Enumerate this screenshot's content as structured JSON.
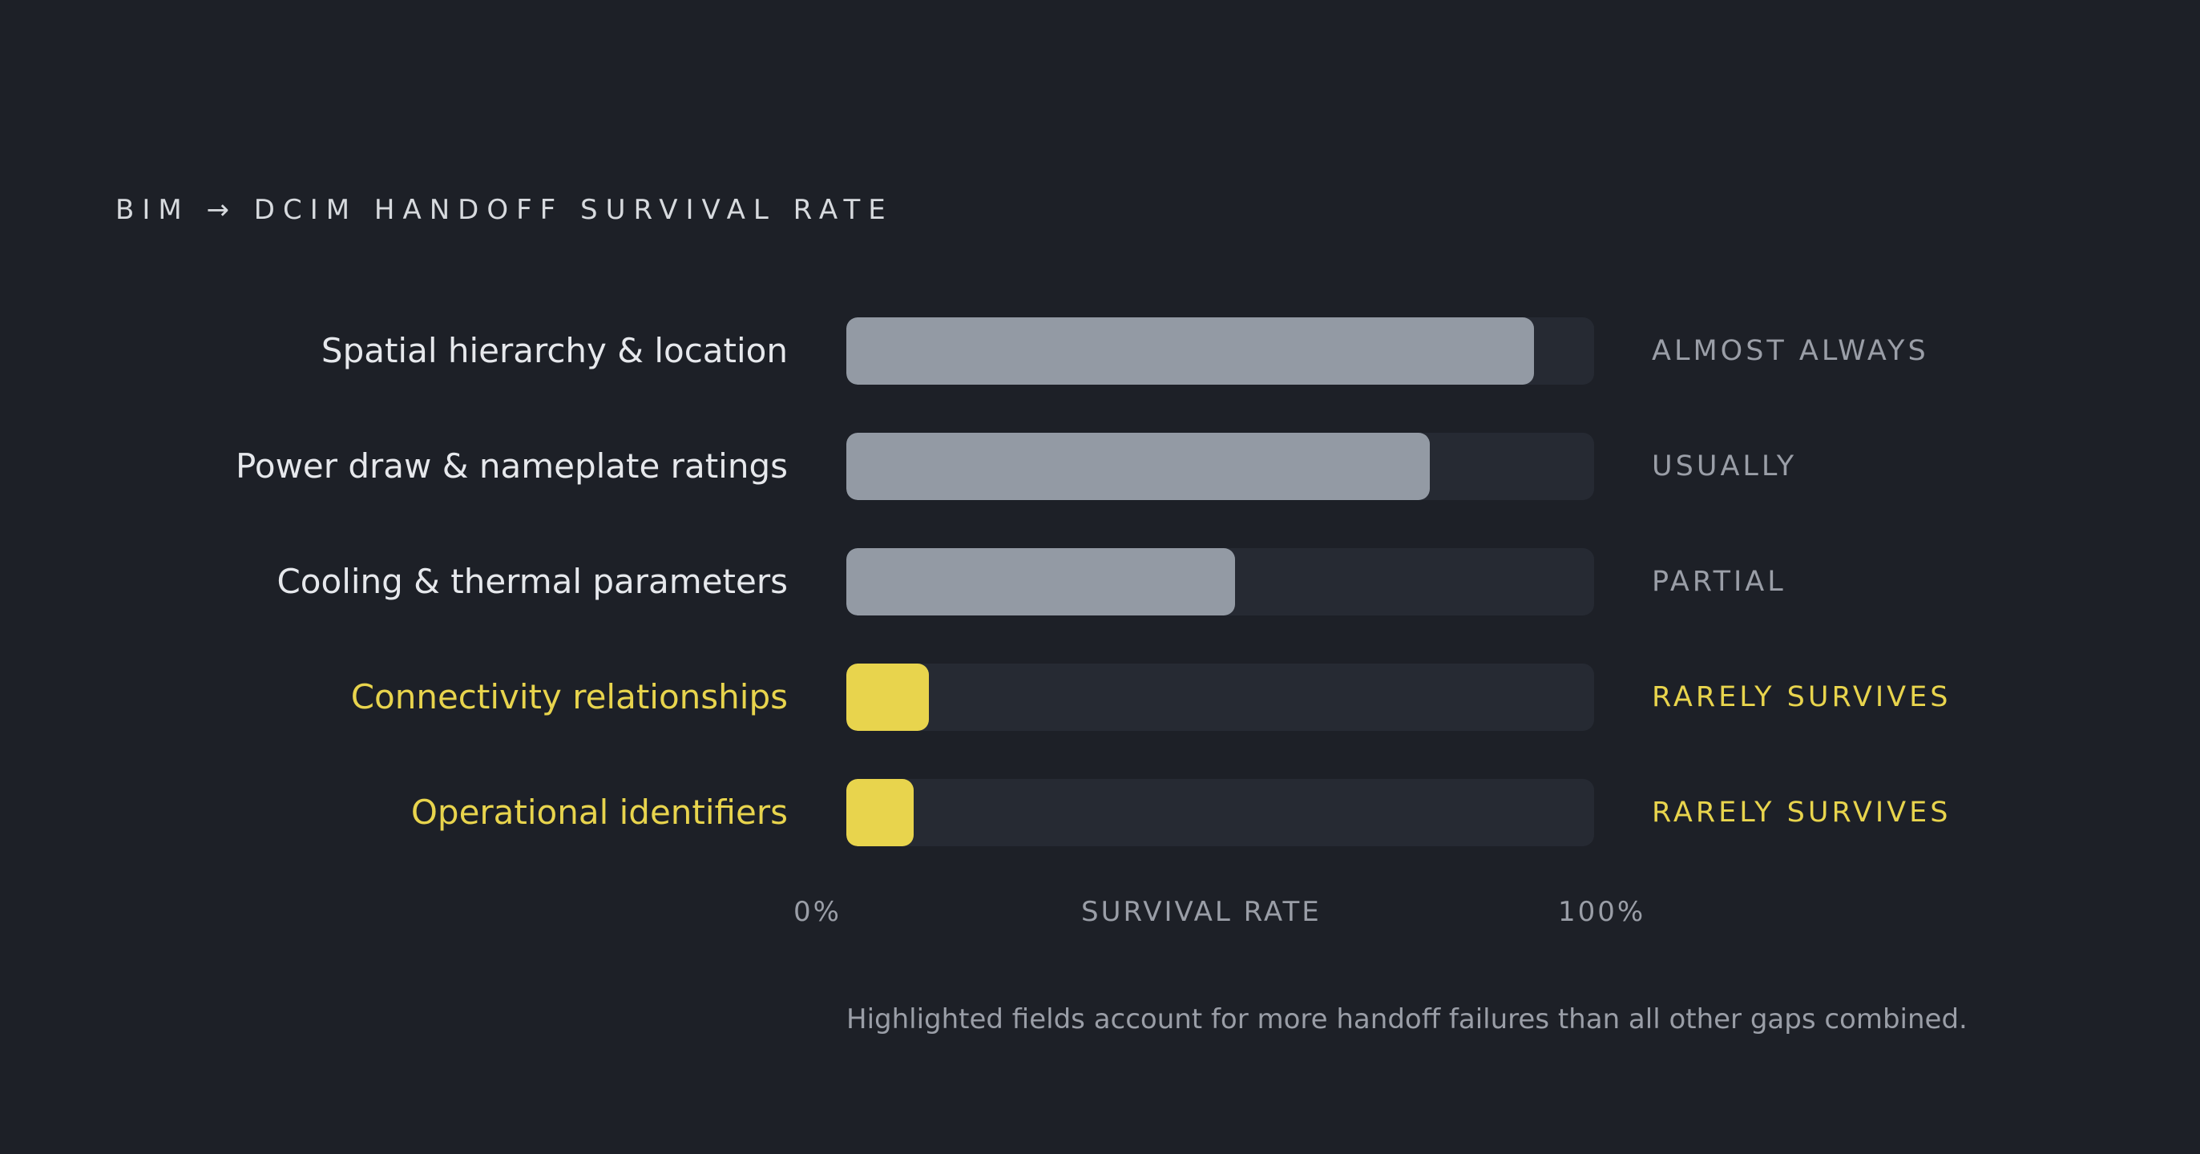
{
  "title": "BIM → DCIM HANDOFF SURVIVAL RATE",
  "colors": {
    "background": "#1d2027",
    "track": "#262a33",
    "normal_fill": "#939aa4",
    "highlight": "#e8d44d",
    "normal_label": "#e6e8ec",
    "normal_status": "#9a9ea7"
  },
  "chart_data": {
    "type": "bar",
    "orientation": "horizontal",
    "xlabel": "SURVIVAL RATE",
    "xlim": [
      0,
      100
    ],
    "axis_ticks": {
      "min": "0%",
      "max": "100%"
    },
    "categories": [
      "Spatial hierarchy & location",
      "Power draw & nameplate ratings",
      "Cooling & thermal parameters",
      "Connectivity relationships",
      "Operational identifiers"
    ],
    "values": [
      92,
      78,
      52,
      11,
      9
    ],
    "status_labels": [
      "ALMOST ALWAYS",
      "USUALLY",
      "PARTIAL",
      "RARELY SURVIVES",
      "RARELY SURVIVES"
    ],
    "highlighted": [
      false,
      false,
      false,
      true,
      true
    ],
    "footnote": "Highlighted fields account for more handoff failures than all other gaps combined."
  }
}
